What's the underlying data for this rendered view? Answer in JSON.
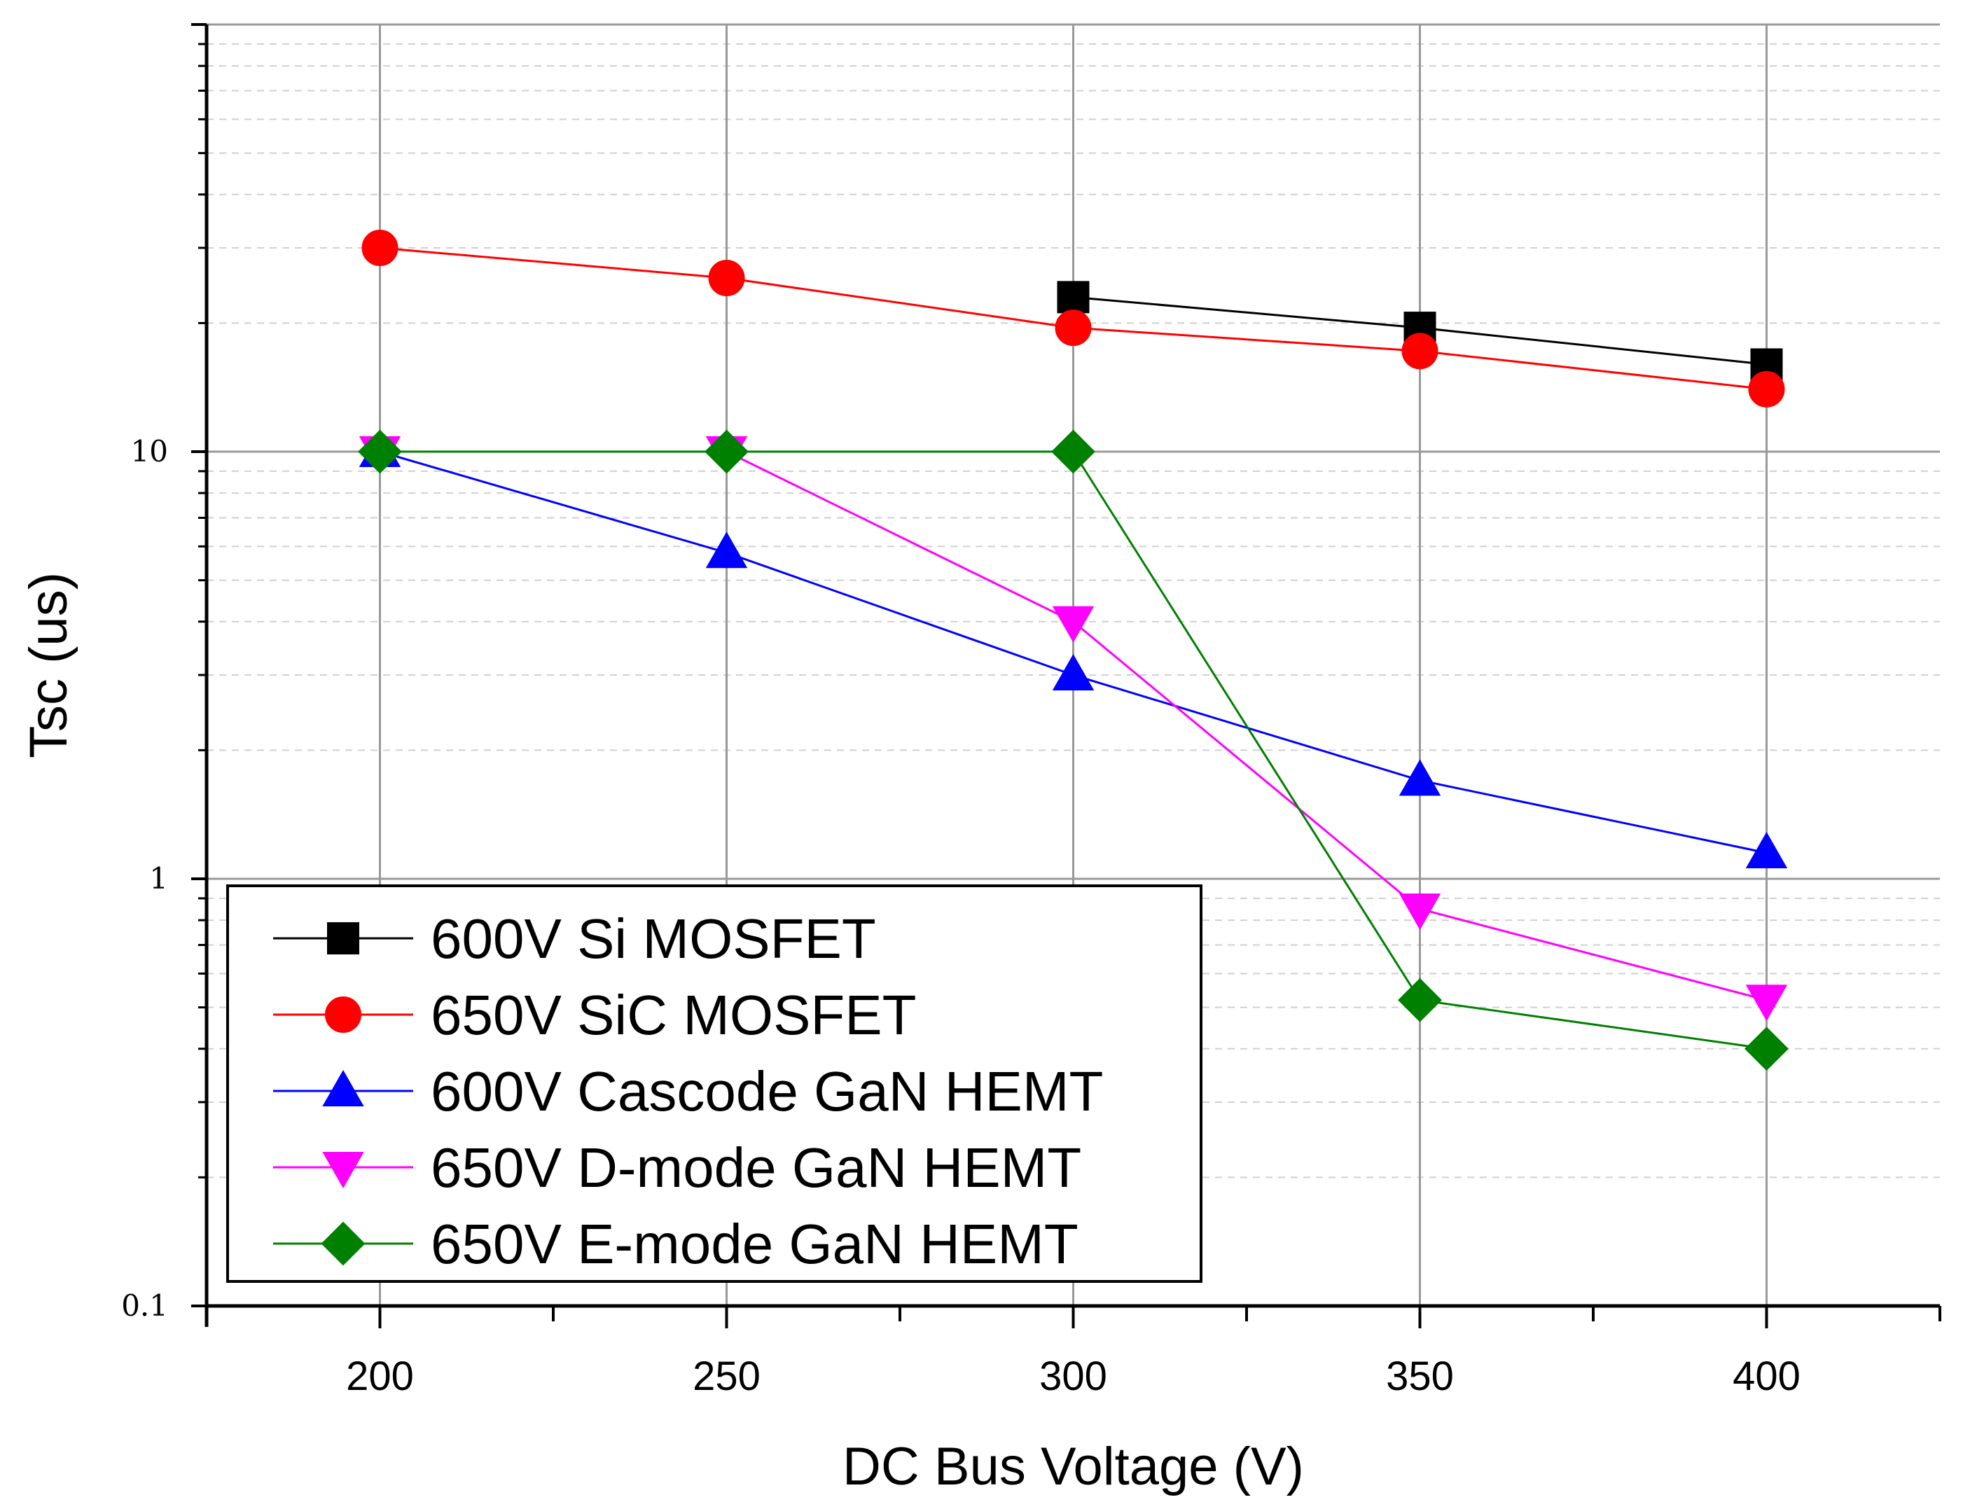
{
  "chart_data": {
    "type": "line",
    "title": "",
    "xlabel": "DC Bus Voltage (V)",
    "ylabel": "Tsc (us)",
    "x_scale": "linear",
    "y_scale": "log",
    "xlim": [
      175,
      425
    ],
    "ylim": [
      0.1,
      100
    ],
    "x_ticks": [
      200,
      250,
      300,
      350,
      400
    ],
    "x_tick_labels": [
      "200",
      "250",
      "300",
      "350",
      "400"
    ],
    "y_ticks": [
      0.1,
      1,
      10
    ],
    "y_tick_labels": [
      "0.1",
      "1",
      "10"
    ],
    "grid": true,
    "legend_position": "bottom-left",
    "series": [
      {
        "name": "600V Si MOSFET",
        "color": "#000000",
        "marker": "square",
        "x": [
          300,
          350,
          400
        ],
        "y": [
          23,
          19.5,
          16
        ]
      },
      {
        "name": "650V SiC MOSFET",
        "color": "#ff0000",
        "marker": "circle",
        "x": [
          200,
          250,
          300,
          350,
          400
        ],
        "y": [
          30,
          25.5,
          19.5,
          17.2,
          14
        ]
      },
      {
        "name": "600V Cascode GaN HEMT",
        "color": "#0000ff",
        "marker": "triangle-up",
        "x": [
          200,
          250,
          300,
          350,
          400
        ],
        "y": [
          10,
          5.8,
          3.0,
          1.7,
          1.15
        ]
      },
      {
        "name": "650V D-mode GaN HEMT",
        "color": "#ff00ff",
        "marker": "triangle-down",
        "x": [
          200,
          250,
          300,
          350,
          400
        ],
        "y": [
          10,
          10,
          4.0,
          0.85,
          0.52
        ]
      },
      {
        "name": "650V E-mode GaN HEMT",
        "color": "#008000",
        "marker": "diamond",
        "x": [
          200,
          250,
          300,
          350,
          400
        ],
        "y": [
          10,
          10,
          10,
          0.52,
          0.4
        ]
      }
    ]
  }
}
